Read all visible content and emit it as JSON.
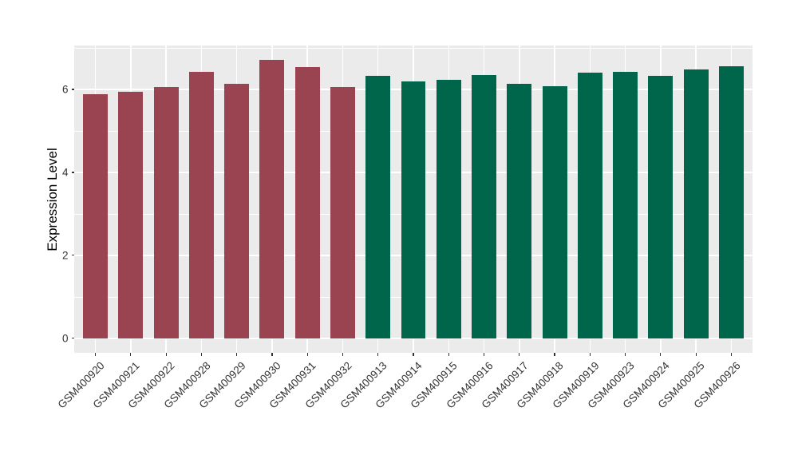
{
  "chart_data": {
    "type": "bar",
    "title": "",
    "xlabel": "",
    "ylabel": "Expression Level",
    "categories": [
      "GSM400920",
      "GSM400921",
      "GSM400922",
      "GSM400928",
      "GSM400929",
      "GSM400930",
      "GSM400931",
      "GSM400932",
      "GSM400913",
      "GSM400914",
      "GSM400915",
      "GSM400916",
      "GSM400917",
      "GSM400918",
      "GSM400919",
      "GSM400923",
      "GSM400924",
      "GSM400925",
      "GSM400926"
    ],
    "values": [
      5.89,
      5.95,
      6.05,
      6.43,
      6.14,
      6.72,
      6.54,
      6.06,
      6.32,
      6.19,
      6.23,
      6.34,
      6.14,
      6.08,
      6.41,
      6.43,
      6.33,
      6.49,
      6.55
    ],
    "groups": [
      "group1",
      "group1",
      "group1",
      "group1",
      "group1",
      "group1",
      "group1",
      "group1",
      "group2",
      "group2",
      "group2",
      "group2",
      "group2",
      "group2",
      "group2",
      "group2",
      "group2",
      "group2",
      "group2"
    ],
    "group_colors": {
      "group1": "#9B4451",
      "group2": "#00664B"
    },
    "yticks": [
      0,
      2,
      4,
      6
    ],
    "yticks_minor": [
      1,
      3,
      5,
      7
    ],
    "ylim": [
      -0.35,
      7.06
    ],
    "grid": true,
    "legend_position": "none",
    "panel_bg": "#EBEBEB",
    "grid_color": "#FFFFFF",
    "tick_color": "#333333",
    "axis_title_color": "#000000"
  }
}
